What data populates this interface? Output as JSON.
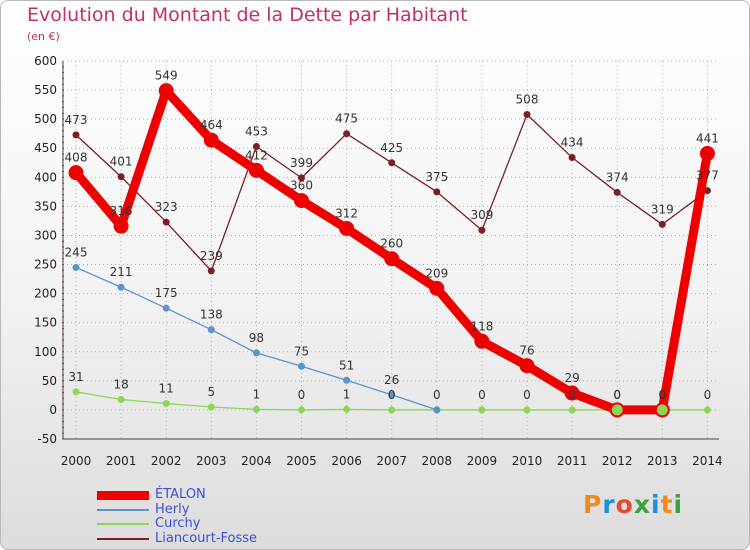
{
  "header": {
    "title": "Evolution du Montant de la Dette par Habitant",
    "unit": "(en €)"
  },
  "logo": {
    "text": "Proxiti",
    "colors": [
      "#f08a1c",
      "#1f8fd6",
      "#e8482a",
      "#3aa33a",
      "#1f8fd6",
      "#f08a1c",
      "#3aa33a"
    ]
  },
  "colors": {
    "title": "#c0306a",
    "axis_text": "#222222",
    "grid": "#b0b0b0",
    "legend_text": "#3a4fd8"
  },
  "chart_data": {
    "type": "line",
    "title": "Evolution du Montant de la Dette par Habitant",
    "ylabel": "(en €)",
    "ylim": [
      -50,
      600
    ],
    "yticks": [
      -50,
      0,
      50,
      100,
      150,
      200,
      250,
      300,
      350,
      400,
      450,
      500,
      550,
      600
    ],
    "x": [
      "2000",
      "2001",
      "2002",
      "2003",
      "2004",
      "2005",
      "2006",
      "2007",
      "2008",
      "2009",
      "2010",
      "2011",
      "2012",
      "2013",
      "2014"
    ],
    "grid": true,
    "legend_position": "bottom-left",
    "series": [
      {
        "name": "ÉTALON",
        "color": "#ee0000",
        "values": [
          408,
          316,
          549,
          464,
          412,
          360,
          312,
          260,
          209,
          118,
          76,
          29,
          0,
          0,
          441
        ],
        "labels": [
          "408",
          "316",
          "549",
          "464",
          "412",
          "360",
          "312",
          "260",
          "209",
          "118",
          "76",
          "29",
          "0",
          "0",
          "441"
        ]
      },
      {
        "name": "Herly",
        "color": "#5b93cc",
        "values": [
          245,
          211,
          175,
          138,
          98,
          75,
          51,
          26,
          0,
          null,
          null,
          null,
          null,
          null,
          null
        ],
        "labels": [
          "245",
          "211",
          "175",
          "138",
          "98",
          "75",
          "51",
          "26",
          "",
          "",
          "",
          "",
          "",
          "",
          ""
        ]
      },
      {
        "name": "Curchy",
        "color": "#8ad655",
        "values": [
          31,
          18,
          11,
          5,
          1,
          0,
          1,
          0,
          0,
          0,
          0,
          0,
          0,
          0,
          0
        ],
        "labels": [
          "31",
          "18",
          "11",
          "5",
          "1",
          "0",
          "1",
          "0",
          "0",
          "0",
          "0",
          "0",
          "0",
          "0",
          "0"
        ]
      },
      {
        "name": "Liancourt-Fosse",
        "color": "#7a1f24",
        "values": [
          473,
          401,
          323,
          239,
          453,
          399,
          475,
          425,
          375,
          309,
          508,
          434,
          374,
          319,
          377
        ],
        "labels": [
          "473",
          "401",
          "323",
          "239",
          "453",
          "399",
          "475",
          "425",
          "375",
          "309",
          "508",
          "434",
          "374",
          "319",
          "377"
        ]
      }
    ]
  }
}
